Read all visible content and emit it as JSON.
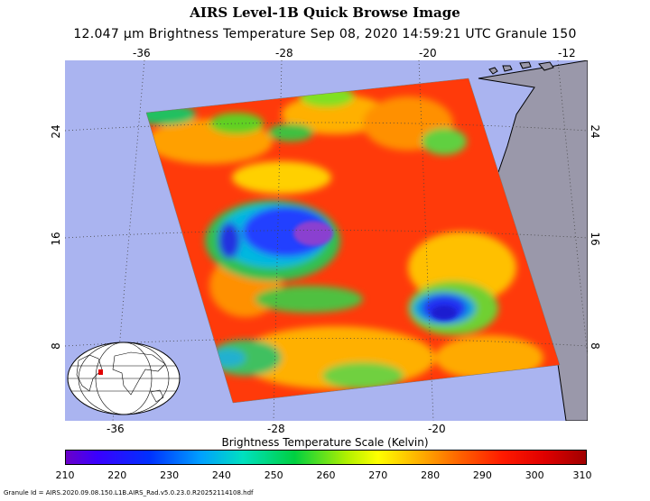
{
  "header": {
    "title": "AIRS Level-1B Quick Browse Image",
    "subtitle": "12.047 μm Brightness Temperature    Sep 08, 2020 14:59:21 UTC   Granule 150"
  },
  "map": {
    "lon_ticks_top": [
      "-36",
      "-28",
      "-20",
      "-12"
    ],
    "lon_ticks_bottom": [
      "-36",
      "-28",
      "-20"
    ],
    "lat_ticks_left": [
      "24",
      "16",
      "8"
    ],
    "lat_ticks_right": [
      "24",
      "16",
      "8"
    ],
    "ocean_color": "#aab4f0",
    "land_color": "#9a98aa"
  },
  "colorbar": {
    "title": "Brightness Temperature Scale (Kelvin)",
    "labels": [
      "210",
      "220",
      "230",
      "240",
      "250",
      "260",
      "270",
      "280",
      "290",
      "300",
      "310"
    ]
  },
  "footer": {
    "granule_id": "Granule Id = AIRS.2020.09.08.150.L1B.AIRS_Rad.v5.0.23.0.R20252114108.hdf"
  }
}
